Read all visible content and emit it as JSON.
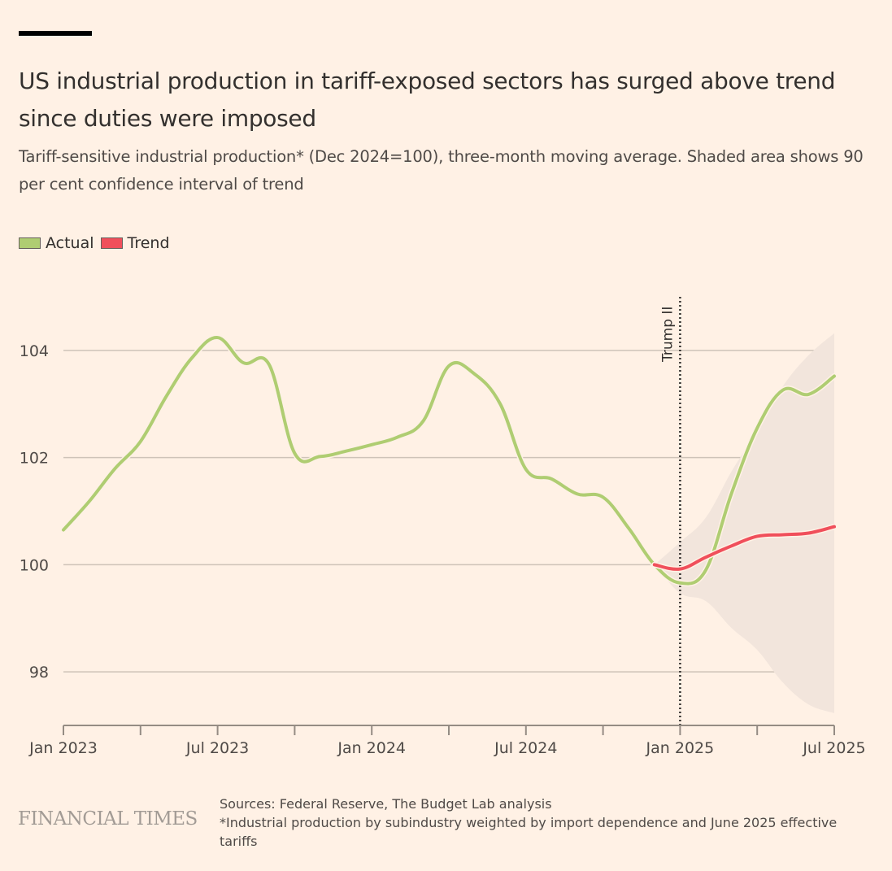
{
  "header": {
    "title": "US industrial production in tariff-exposed sectors has surged above trend since duties were imposed",
    "subtitle": "Tariff-sensitive industrial production* (Dec 2024=100), three-month moving average. Shaded area shows 90 per cent confidence interval of trend"
  },
  "legend": [
    {
      "label": "Actual",
      "color": "#afcd72"
    },
    {
      "label": "Trend",
      "color": "#f04f5b"
    }
  ],
  "chart_data": {
    "type": "line",
    "title": "US industrial production in tariff-exposed sectors has surged above trend since duties were imposed",
    "subtitle": "Tariff-sensitive industrial production* (Dec 2024=100), three-month moving average. Shaded area shows 90 per cent confidence interval of trend",
    "xlabel": "",
    "ylabel": "",
    "ylim": [
      97.0,
      105.0
    ],
    "yticks": [
      98,
      100,
      102,
      104
    ],
    "ytick_labels": [
      "98",
      "100",
      "102",
      "104"
    ],
    "xlim_months": [
      0,
      30
    ],
    "xtick_labels": [
      {
        "month": 0,
        "label": "Jan 2023"
      },
      {
        "month": 6,
        "label": "Jul 2023"
      },
      {
        "month": 12,
        "label": "Jan 2024"
      },
      {
        "month": 18,
        "label": "Jul 2024"
      },
      {
        "month": 24,
        "label": "Jan 2025"
      },
      {
        "month": 30,
        "label": "Jul 2025"
      }
    ],
    "minor_ticks_months": [
      3,
      9,
      15,
      21,
      27
    ],
    "grid": true,
    "legend_position": "top-left",
    "x": [
      "Jan 2023",
      "Feb 2023",
      "Mar 2023",
      "Apr 2023",
      "May 2023",
      "Jun 2023",
      "Jul 2023",
      "Aug 2023",
      "Sep 2023",
      "Oct 2023",
      "Nov 2023",
      "Dec 2023",
      "Jan 2024",
      "Feb 2024",
      "Mar 2024",
      "Apr 2024",
      "May 2024",
      "Jun 2024",
      "Jul 2024",
      "Aug 2024",
      "Sep 2024",
      "Oct 2024",
      "Nov 2024",
      "Dec 2024",
      "Jan 2025",
      "Feb 2025",
      "Mar 2025",
      "Apr 2025",
      "May 2025",
      "Jun 2025",
      "Jul 2025"
    ],
    "series": [
      {
        "name": "Actual",
        "color": "#afcd72",
        "start_month": 0,
        "values": [
          100.65,
          101.18,
          101.79,
          102.3,
          103.14,
          103.86,
          104.24,
          103.77,
          103.74,
          102.08,
          102.02,
          102.12,
          102.24,
          102.38,
          102.68,
          103.71,
          103.56,
          103.0,
          101.78,
          101.6,
          101.32,
          101.26,
          100.68,
          100.0,
          99.66,
          99.9,
          101.33,
          102.55,
          103.26,
          103.18,
          103.52
        ]
      },
      {
        "name": "Trend",
        "color": "#f04f5b",
        "start_month": 23,
        "values": [
          100.0,
          99.92,
          100.14,
          100.35,
          100.53,
          100.56,
          100.59,
          100.71
        ]
      }
    ],
    "confidence_band": {
      "name": "90 per cent confidence interval of trend",
      "color": "#f2e5dc",
      "start_month": 23,
      "upper": [
        100.0,
        100.42,
        100.88,
        101.74,
        102.5,
        103.33,
        103.91,
        104.32
      ],
      "lower": [
        100.0,
        99.47,
        99.32,
        98.82,
        98.41,
        97.8,
        97.39,
        97.23
      ]
    },
    "annotations": [
      {
        "type": "vline",
        "month": 24,
        "label": "Trump II",
        "style": "dotted"
      }
    ]
  },
  "footer": {
    "logo": "FINANCIAL TIMES",
    "sources": "Sources: Federal Reserve, The Budget Lab analysis",
    "note": "*Industrial production by subindustry weighted by import dependence and June 2025 effective tariffs"
  }
}
